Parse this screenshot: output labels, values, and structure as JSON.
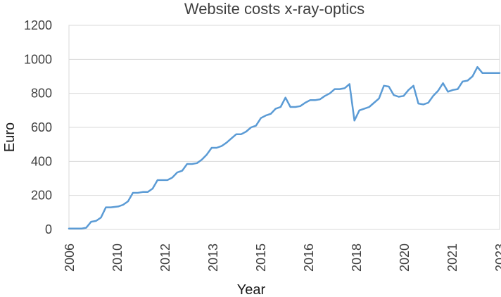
{
  "chart_data": {
    "type": "line",
    "title": "Website costs x-ray-optics",
    "xlabel": "Year",
    "ylabel": "Euro",
    "ylim": [
      0,
      1200
    ],
    "yticks": [
      0,
      200,
      400,
      600,
      800,
      1000,
      1200
    ],
    "xlim": [
      2006.0,
      2023.5
    ],
    "xtick_labels": [
      "2006",
      "2010",
      "2012",
      "2013",
      "2015",
      "2016",
      "2018",
      "2020",
      "2021",
      "2023"
    ],
    "grid": true,
    "legend": "none",
    "series": [
      {
        "color": "#5b9bd5",
        "x": [
          2006.0,
          2006.3,
          2006.5,
          2006.7,
          2006.9,
          2007.1,
          2007.3,
          2007.5,
          2007.7,
          2008.0,
          2008.2,
          2008.4,
          2008.6,
          2008.8,
          2009.0,
          2009.2,
          2009.4,
          2009.6,
          2009.8,
          2010.0,
          2010.2,
          2010.4,
          2010.6,
          2010.8,
          2011.0,
          2011.2,
          2011.4,
          2011.6,
          2011.8,
          2012.0,
          2012.2,
          2012.4,
          2012.6,
          2012.8,
          2013.0,
          2013.2,
          2013.4,
          2013.6,
          2013.8,
          2014.0,
          2014.2,
          2014.4,
          2014.6,
          2014.8,
          2015.0,
          2015.2,
          2015.4,
          2015.6,
          2015.8,
          2016.0,
          2016.2,
          2016.4,
          2016.6,
          2016.8,
          2017.0,
          2017.2,
          2017.4,
          2017.6,
          2017.8,
          2018.0,
          2018.2,
          2018.4,
          2018.6,
          2018.8,
          2019.0,
          2019.2,
          2019.4,
          2019.6,
          2019.8,
          2020.0,
          2020.2,
          2020.4,
          2020.6,
          2020.8,
          2021.0,
          2021.2,
          2021.4,
          2021.6,
          2021.8,
          2022.0,
          2022.2,
          2022.4,
          2022.6,
          2022.8,
          2023.0,
          2023.2,
          2023.35,
          2023.5
        ],
        "values": [
          5,
          5,
          5,
          10,
          45,
          50,
          70,
          130,
          130,
          135,
          145,
          165,
          215,
          215,
          220,
          220,
          240,
          290,
          290,
          290,
          305,
          335,
          345,
          385,
          385,
          390,
          410,
          440,
          480,
          480,
          490,
          510,
          535,
          560,
          560,
          575,
          600,
          610,
          655,
          670,
          680,
          710,
          720,
          775,
          720,
          720,
          725,
          745,
          760,
          760,
          765,
          785,
          800,
          825,
          825,
          830,
          855,
          640,
          700,
          710,
          720,
          745,
          770,
          845,
          840,
          790,
          780,
          785,
          820,
          845,
          740,
          735,
          745,
          785,
          815,
          860,
          810,
          820,
          825,
          870,
          875,
          900,
          955,
          920,
          920,
          920,
          920,
          920
        ]
      }
    ]
  }
}
